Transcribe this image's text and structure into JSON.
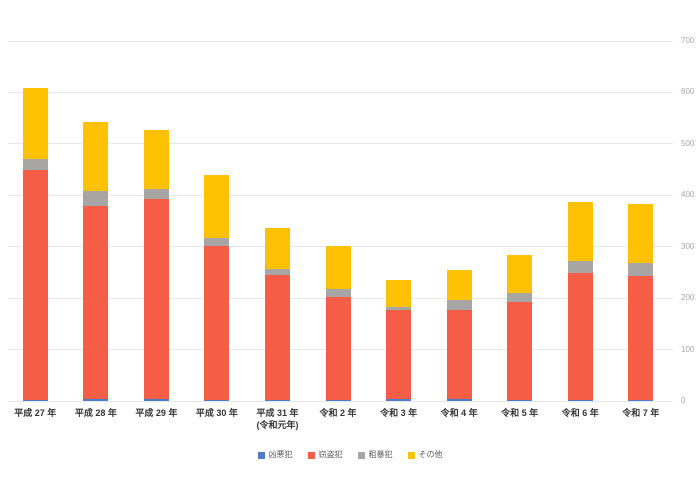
{
  "chart_data": {
    "type": "bar",
    "stacked": true,
    "title": "",
    "xlabel": "",
    "ylabel": "",
    "ylim": [
      0,
      700
    ],
    "ytick_step": 100,
    "yticks": [
      "0",
      "100",
      "200",
      "300",
      "400",
      "500",
      "600",
      "700"
    ],
    "axis_side": "right",
    "grid": true,
    "legend_position": "bottom",
    "categories": [
      {
        "line1": "平成 27 年",
        "line2": ""
      },
      {
        "line1": "平成 28 年",
        "line2": ""
      },
      {
        "line1": "平成 29 年",
        "line2": ""
      },
      {
        "line1": "平成 30 年",
        "line2": ""
      },
      {
        "line1": "平成 31 年",
        "line2": "(令和元年)"
      },
      {
        "line1": "令和 2 年",
        "line2": ""
      },
      {
        "line1": "令和 3 年",
        "line2": ""
      },
      {
        "line1": "令和 4 年",
        "line2": ""
      },
      {
        "line1": "令和 5 年",
        "line2": ""
      },
      {
        "line1": "令和 6 年",
        "line2": ""
      },
      {
        "line1": "令和 7 年",
        "line2": ""
      }
    ],
    "series": [
      {
        "name": "凶悪犯",
        "color": "#4d7dc6",
        "values": [
          1,
          3,
          3,
          1,
          1,
          1,
          3,
          4,
          1,
          2,
          2
        ]
      },
      {
        "name": "窃盗犯",
        "color": "#f65d47",
        "values": [
          449,
          377,
          390,
          301,
          244,
          202,
          173,
          173,
          192,
          246,
          242
        ]
      },
      {
        "name": "粗暴犯",
        "color": "#a8a6a5",
        "values": [
          21,
          28,
          19,
          14,
          12,
          15,
          7,
          19,
          17,
          24,
          25
        ]
      },
      {
        "name": "その他",
        "color": "#ffc103",
        "values": [
          137,
          135,
          115,
          124,
          80,
          84,
          52,
          59,
          74,
          114,
          115
        ]
      }
    ],
    "totals": [
      608,
      543,
      527,
      440,
      337,
      302,
      235,
      255,
      284,
      386,
      384
    ],
    "colors": {
      "gridline": "#e8e8e8",
      "axis_text": "#a6a6a6",
      "category_text": "#333333",
      "legend_text": "#595959",
      "background": "#ffffff"
    }
  }
}
